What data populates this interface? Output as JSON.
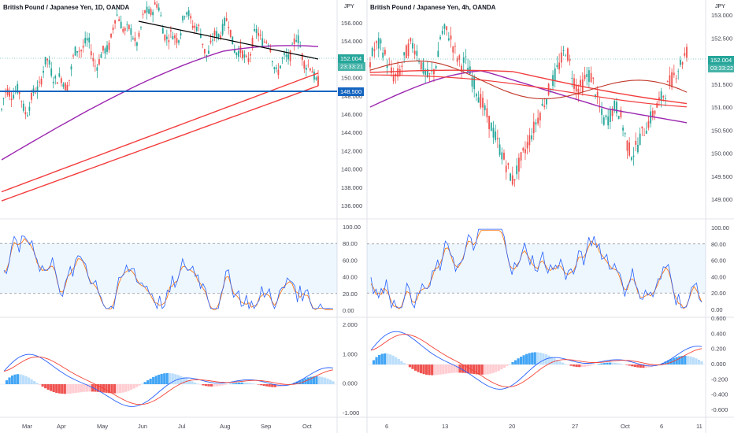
{
  "left_chart": {
    "title": "British Pound / Japanese Yen, 1D, OANDA",
    "currency": "JPY",
    "price_axis": [
      "156.000",
      "154.000",
      "152.000",
      "150.000",
      "148.000",
      "146.000",
      "144.000",
      "142.000",
      "140.000",
      "138.000",
      "136.000"
    ],
    "last_price": "152.004",
    "countdown": "23:33:21",
    "support_price": "148.500",
    "stoch_axis": [
      "100.00",
      "80.00",
      "60.00",
      "40.00",
      "20.00",
      "0.00"
    ],
    "macd_axis": [
      "2.000",
      "1.000",
      "0.000",
      "-1.000"
    ],
    "dates": [
      "Mar",
      "Apr",
      "May",
      "Jun",
      "Jul",
      "Aug",
      "Sep",
      "Oct"
    ]
  },
  "right_chart": {
    "title": "British Pound / Japanese Yen, 4h, OANDA",
    "currency": "JPY",
    "price_axis": [
      "153.000",
      "152.500",
      "152.000",
      "151.500",
      "151.000",
      "150.500",
      "150.000",
      "149.500",
      "149.000"
    ],
    "last_price": "152.004",
    "countdown": "03:33:22",
    "stoch_axis": [
      "100.00",
      "80.00",
      "60.00",
      "40.00",
      "20.00",
      "0.00"
    ],
    "macd_axis": [
      "0.600",
      "0.400",
      "0.200",
      "0.000",
      "-0.200",
      "-0.400",
      "-0.600"
    ],
    "dates": [
      "6",
      "13",
      "20",
      "27",
      "Oct",
      "6",
      "11"
    ]
  },
  "colors": {
    "up": "#26a69a",
    "down": "#ef5350",
    "ma_purple": "#9c27b0",
    "ma_red": "#f23c3c",
    "support": "#1565c0",
    "stoch_k": "#2962ff",
    "stoch_d": "#ff6d00",
    "macd_line": "#2962ff",
    "signal_line": "#f44336"
  }
}
